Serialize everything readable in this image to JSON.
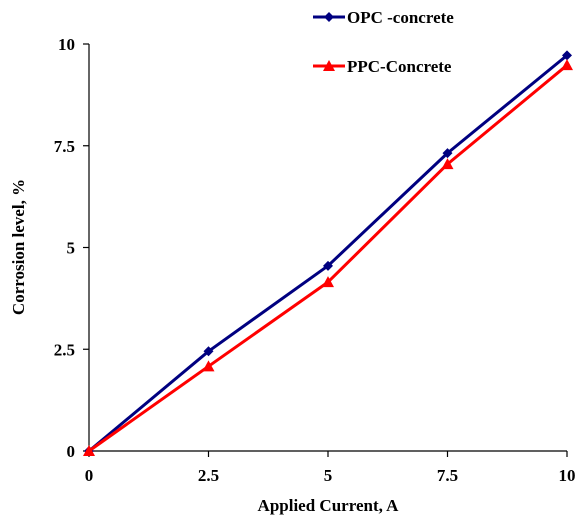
{
  "chart_data": {
    "type": "line",
    "title": "",
    "xlabel": "Applied Current, A",
    "ylabel": "Corrosion level, %",
    "xlim": [
      0,
      10
    ],
    "ylim": [
      0,
      10
    ],
    "x_ticks": [
      "0",
      "2.5",
      "5",
      "7.5",
      "10"
    ],
    "y_ticks": [
      "0",
      "2.5",
      "5",
      "7.5",
      "10"
    ],
    "grid": false,
    "legend_position": "top-right",
    "x": [
      0,
      2.5,
      5,
      7.5,
      10
    ],
    "series": [
      {
        "name": "OPC -concrete",
        "values": [
          0,
          2.45,
          4.55,
          7.32,
          9.72
        ],
        "color": "#000080",
        "marker": "diamond"
      },
      {
        "name": "PPC-Concrete",
        "values": [
          0,
          2.08,
          4.15,
          7.05,
          9.48
        ],
        "color": "#ff0000",
        "marker": "triangle"
      }
    ]
  }
}
